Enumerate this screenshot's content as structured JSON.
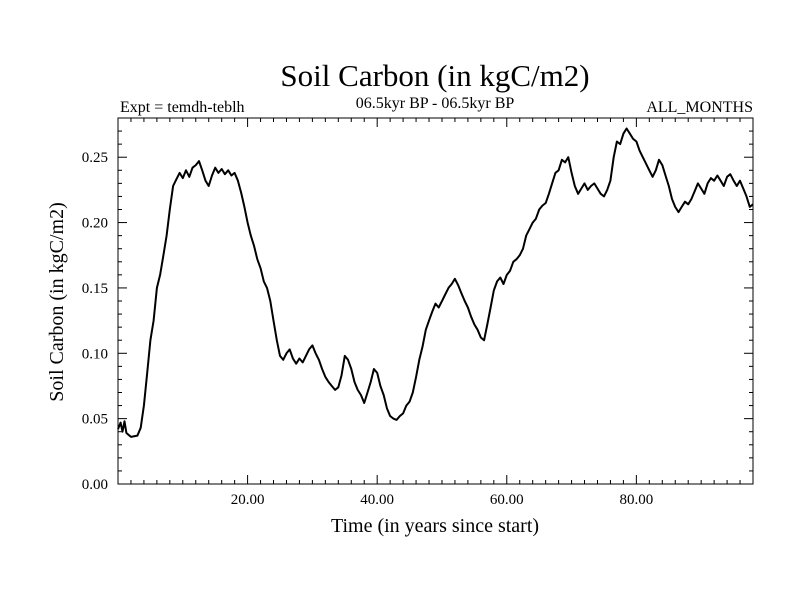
{
  "chart_data": {
    "type": "line",
    "title": "Soil Carbon (in kgC/m2)",
    "subtitle_left": "Expt = temdh-teblh",
    "subtitle_center": "06.5kyr BP - 06.5kyr BP",
    "subtitle_right": "ALL_MONTHS",
    "xlabel": "Time (in years since start)",
    "ylabel": "Soil Carbon (in kgC/m2)",
    "xlim": [
      0,
      98
    ],
    "ylim": [
      0,
      0.28
    ],
    "x_ticks": [
      20,
      40,
      60,
      80
    ],
    "x_tick_labels": [
      "20.00",
      "40.00",
      "60.00",
      "80.00"
    ],
    "y_ticks": [
      0,
      0.05,
      0.1,
      0.15,
      0.2,
      0.25
    ],
    "y_tick_labels": [
      "0.00",
      "0.05",
      "0.10",
      "0.15",
      "0.20",
      "0.25"
    ],
    "grid": false,
    "series": [
      {
        "color": "#000000",
        "points": [
          [
            0.0,
            0.042
          ],
          [
            0.4,
            0.047
          ],
          [
            0.7,
            0.04
          ],
          [
            1.0,
            0.048
          ],
          [
            1.3,
            0.039
          ],
          [
            2.0,
            0.036
          ],
          [
            3.0,
            0.037
          ],
          [
            3.5,
            0.043
          ],
          [
            4.0,
            0.06
          ],
          [
            4.5,
            0.085
          ],
          [
            5.0,
            0.11
          ],
          [
            5.5,
            0.125
          ],
          [
            6.0,
            0.15
          ],
          [
            6.5,
            0.16
          ],
          [
            7.0,
            0.175
          ],
          [
            7.5,
            0.19
          ],
          [
            8.0,
            0.21
          ],
          [
            8.5,
            0.228
          ],
          [
            9.0,
            0.233
          ],
          [
            9.5,
            0.238
          ],
          [
            10.0,
            0.234
          ],
          [
            10.5,
            0.24
          ],
          [
            11.0,
            0.235
          ],
          [
            11.5,
            0.242
          ],
          [
            12.0,
            0.244
          ],
          [
            12.5,
            0.247
          ],
          [
            13.0,
            0.24
          ],
          [
            13.5,
            0.232
          ],
          [
            14.0,
            0.228
          ],
          [
            14.5,
            0.236
          ],
          [
            15.0,
            0.242
          ],
          [
            15.5,
            0.238
          ],
          [
            16.0,
            0.241
          ],
          [
            16.5,
            0.237
          ],
          [
            17.0,
            0.24
          ],
          [
            17.5,
            0.236
          ],
          [
            18.0,
            0.238
          ],
          [
            18.5,
            0.232
          ],
          [
            19.0,
            0.223
          ],
          [
            19.5,
            0.212
          ],
          [
            20.0,
            0.2
          ],
          [
            20.5,
            0.19
          ],
          [
            21.0,
            0.182
          ],
          [
            21.5,
            0.172
          ],
          [
            22.0,
            0.165
          ],
          [
            22.5,
            0.155
          ],
          [
            23.0,
            0.15
          ],
          [
            23.5,
            0.14
          ],
          [
            24.0,
            0.125
          ],
          [
            24.5,
            0.11
          ],
          [
            25.0,
            0.098
          ],
          [
            25.5,
            0.095
          ],
          [
            26.0,
            0.1
          ],
          [
            26.5,
            0.103
          ],
          [
            27.0,
            0.096
          ],
          [
            27.5,
            0.092
          ],
          [
            28.0,
            0.096
          ],
          [
            28.5,
            0.093
          ],
          [
            29.0,
            0.098
          ],
          [
            29.5,
            0.103
          ],
          [
            30.0,
            0.106
          ],
          [
            30.5,
            0.1
          ],
          [
            31.0,
            0.095
          ],
          [
            31.5,
            0.088
          ],
          [
            32.0,
            0.082
          ],
          [
            32.5,
            0.078
          ],
          [
            33.0,
            0.075
          ],
          [
            33.5,
            0.072
          ],
          [
            34.0,
            0.074
          ],
          [
            34.5,
            0.083
          ],
          [
            35.0,
            0.098
          ],
          [
            35.5,
            0.095
          ],
          [
            36.0,
            0.088
          ],
          [
            36.5,
            0.078
          ],
          [
            37.0,
            0.072
          ],
          [
            37.5,
            0.068
          ],
          [
            38.0,
            0.062
          ],
          [
            38.5,
            0.07
          ],
          [
            39.0,
            0.078
          ],
          [
            39.5,
            0.088
          ],
          [
            40.0,
            0.085
          ],
          [
            40.5,
            0.075
          ],
          [
            41.0,
            0.068
          ],
          [
            41.5,
            0.058
          ],
          [
            42.0,
            0.052
          ],
          [
            42.5,
            0.05
          ],
          [
            43.0,
            0.049
          ],
          [
            43.5,
            0.052
          ],
          [
            44.0,
            0.054
          ],
          [
            44.5,
            0.06
          ],
          [
            45.0,
            0.063
          ],
          [
            45.5,
            0.07
          ],
          [
            46.0,
            0.082
          ],
          [
            46.5,
            0.095
          ],
          [
            47.0,
            0.105
          ],
          [
            47.5,
            0.118
          ],
          [
            48.0,
            0.125
          ],
          [
            48.5,
            0.132
          ],
          [
            49.0,
            0.138
          ],
          [
            49.5,
            0.135
          ],
          [
            50.0,
            0.14
          ],
          [
            50.5,
            0.145
          ],
          [
            51.0,
            0.15
          ],
          [
            51.5,
            0.153
          ],
          [
            52.0,
            0.157
          ],
          [
            52.5,
            0.152
          ],
          [
            53.0,
            0.146
          ],
          [
            53.5,
            0.14
          ],
          [
            54.0,
            0.135
          ],
          [
            54.5,
            0.128
          ],
          [
            55.0,
            0.122
          ],
          [
            55.5,
            0.118
          ],
          [
            56.0,
            0.112
          ],
          [
            56.5,
            0.11
          ],
          [
            57.0,
            0.122
          ],
          [
            57.5,
            0.135
          ],
          [
            58.0,
            0.148
          ],
          [
            58.5,
            0.155
          ],
          [
            59.0,
            0.158
          ],
          [
            59.5,
            0.153
          ],
          [
            60.0,
            0.16
          ],
          [
            60.5,
            0.163
          ],
          [
            61.0,
            0.17
          ],
          [
            61.5,
            0.172
          ],
          [
            62.0,
            0.175
          ],
          [
            62.5,
            0.18
          ],
          [
            63.0,
            0.19
          ],
          [
            63.5,
            0.195
          ],
          [
            64.0,
            0.2
          ],
          [
            64.5,
            0.203
          ],
          [
            65.0,
            0.21
          ],
          [
            65.5,
            0.213
          ],
          [
            66.0,
            0.215
          ],
          [
            66.5,
            0.222
          ],
          [
            67.0,
            0.23
          ],
          [
            67.5,
            0.238
          ],
          [
            68.0,
            0.24
          ],
          [
            68.5,
            0.248
          ],
          [
            69.0,
            0.246
          ],
          [
            69.5,
            0.25
          ],
          [
            70.0,
            0.238
          ],
          [
            70.5,
            0.228
          ],
          [
            71.0,
            0.222
          ],
          [
            71.5,
            0.226
          ],
          [
            72.0,
            0.23
          ],
          [
            72.5,
            0.225
          ],
          [
            73.0,
            0.228
          ],
          [
            73.5,
            0.23
          ],
          [
            74.0,
            0.226
          ],
          [
            74.5,
            0.222
          ],
          [
            75.0,
            0.22
          ],
          [
            75.5,
            0.225
          ],
          [
            76.0,
            0.232
          ],
          [
            76.5,
            0.25
          ],
          [
            77.0,
            0.262
          ],
          [
            77.5,
            0.26
          ],
          [
            78.0,
            0.268
          ],
          [
            78.5,
            0.272
          ],
          [
            79.0,
            0.268
          ],
          [
            79.5,
            0.264
          ],
          [
            80.0,
            0.262
          ],
          [
            80.5,
            0.255
          ],
          [
            81.0,
            0.25
          ],
          [
            81.5,
            0.245
          ],
          [
            82.0,
            0.24
          ],
          [
            82.5,
            0.235
          ],
          [
            83.0,
            0.24
          ],
          [
            83.5,
            0.248
          ],
          [
            84.0,
            0.244
          ],
          [
            84.5,
            0.236
          ],
          [
            85.0,
            0.228
          ],
          [
            85.5,
            0.218
          ],
          [
            86.0,
            0.212
          ],
          [
            86.5,
            0.208
          ],
          [
            87.0,
            0.212
          ],
          [
            87.5,
            0.216
          ],
          [
            88.0,
            0.214
          ],
          [
            88.5,
            0.218
          ],
          [
            89.0,
            0.224
          ],
          [
            89.5,
            0.23
          ],
          [
            90.0,
            0.226
          ],
          [
            90.5,
            0.222
          ],
          [
            91.0,
            0.23
          ],
          [
            91.5,
            0.234
          ],
          [
            92.0,
            0.232
          ],
          [
            92.5,
            0.236
          ],
          [
            93.0,
            0.232
          ],
          [
            93.5,
            0.228
          ],
          [
            94.0,
            0.235
          ],
          [
            94.5,
            0.237
          ],
          [
            95.0,
            0.232
          ],
          [
            95.5,
            0.228
          ],
          [
            96.0,
            0.232
          ],
          [
            96.5,
            0.226
          ],
          [
            97.0,
            0.22
          ],
          [
            97.5,
            0.212
          ],
          [
            98.0,
            0.214
          ]
        ]
      }
    ]
  }
}
